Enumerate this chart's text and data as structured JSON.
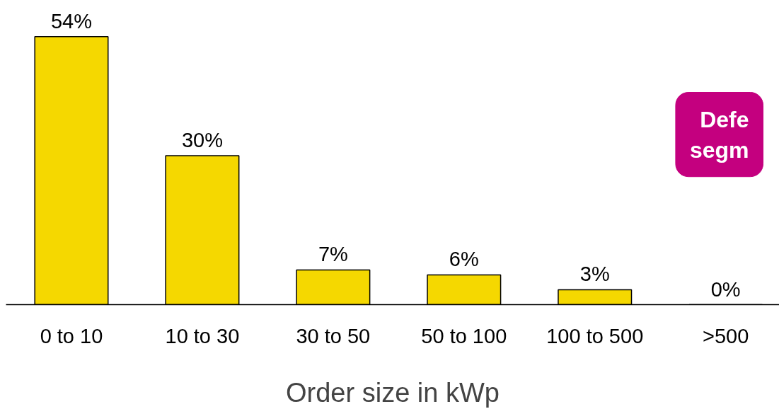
{
  "chart_data": {
    "type": "bar",
    "categories": [
      "0 to 10",
      "10 to 30",
      "30 to 50",
      "50 to 100",
      "100 to 500",
      ">500"
    ],
    "values": [
      54,
      30,
      7,
      6,
      3,
      0
    ],
    "color": "#f5d800",
    "xlabel": "Order size in kWp",
    "value_labels": [
      "54%",
      "30%",
      "7%",
      "6%",
      "3%",
      "0%"
    ],
    "tick_labels": "x",
    "grid": false,
    "annotations": [
      "Defe\nsegm"
    ]
  }
}
